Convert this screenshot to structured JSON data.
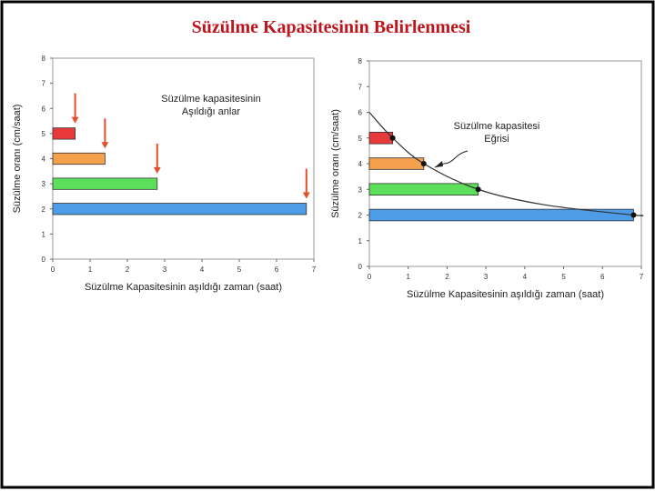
{
  "title": "Süzülme Kapasitesinin Belirlenmesi",
  "chart_data": [
    {
      "type": "hbar",
      "x_label": "Süzülme Kapasitesinin aşıldığı zaman (saat)",
      "y_label": "Süzülme oranı (cm/saat)",
      "annotation_lines": [
        "Süzülme kapasitesinin",
        "Aşıldığı anlar"
      ],
      "y": [
        5,
        4,
        3,
        2
      ],
      "values": [
        0.6,
        1.4,
        2.8,
        6.8
      ],
      "colors": [
        "#e83a3a",
        "#f5a04c",
        "#5ce05c",
        "#4c9ce8"
      ],
      "arrow_color": "#e0502a",
      "xlim": [
        0,
        7
      ],
      "xticks": [
        0,
        1,
        2,
        3,
        4,
        5,
        6,
        7
      ],
      "ylim": [
        0,
        8
      ],
      "yticks": [
        0,
        1,
        2,
        3,
        4,
        5,
        6,
        7,
        8
      ]
    },
    {
      "type": "hbar-curve",
      "x_label": "Süzülme Kapasitesinin aşıldığı zaman (saat)",
      "y_label": "Süzülme oranı (cm/saat)",
      "annotation_lines": [
        "Süzülme kapasitesi",
        "Eğrisi"
      ],
      "y": [
        5,
        4,
        3,
        2
      ],
      "values": [
        0.6,
        1.4,
        2.8,
        6.8
      ],
      "colors": [
        "#e83a3a",
        "#f5a04c",
        "#5ce05c",
        "#4c9ce8"
      ],
      "curve": {
        "x": [
          0,
          0.6,
          1.4,
          2.8,
          4.5,
          6.8,
          7
        ],
        "values": [
          6,
          5,
          4,
          3,
          2.4,
          2,
          2
        ],
        "color": "#333333"
      },
      "xlim": [
        0,
        7
      ],
      "xticks": [
        0,
        1,
        2,
        3,
        4,
        5,
        6,
        7
      ],
      "ylim": [
        0,
        8
      ],
      "yticks": [
        0,
        1,
        2,
        3,
        4,
        5,
        6,
        7,
        8
      ]
    }
  ]
}
